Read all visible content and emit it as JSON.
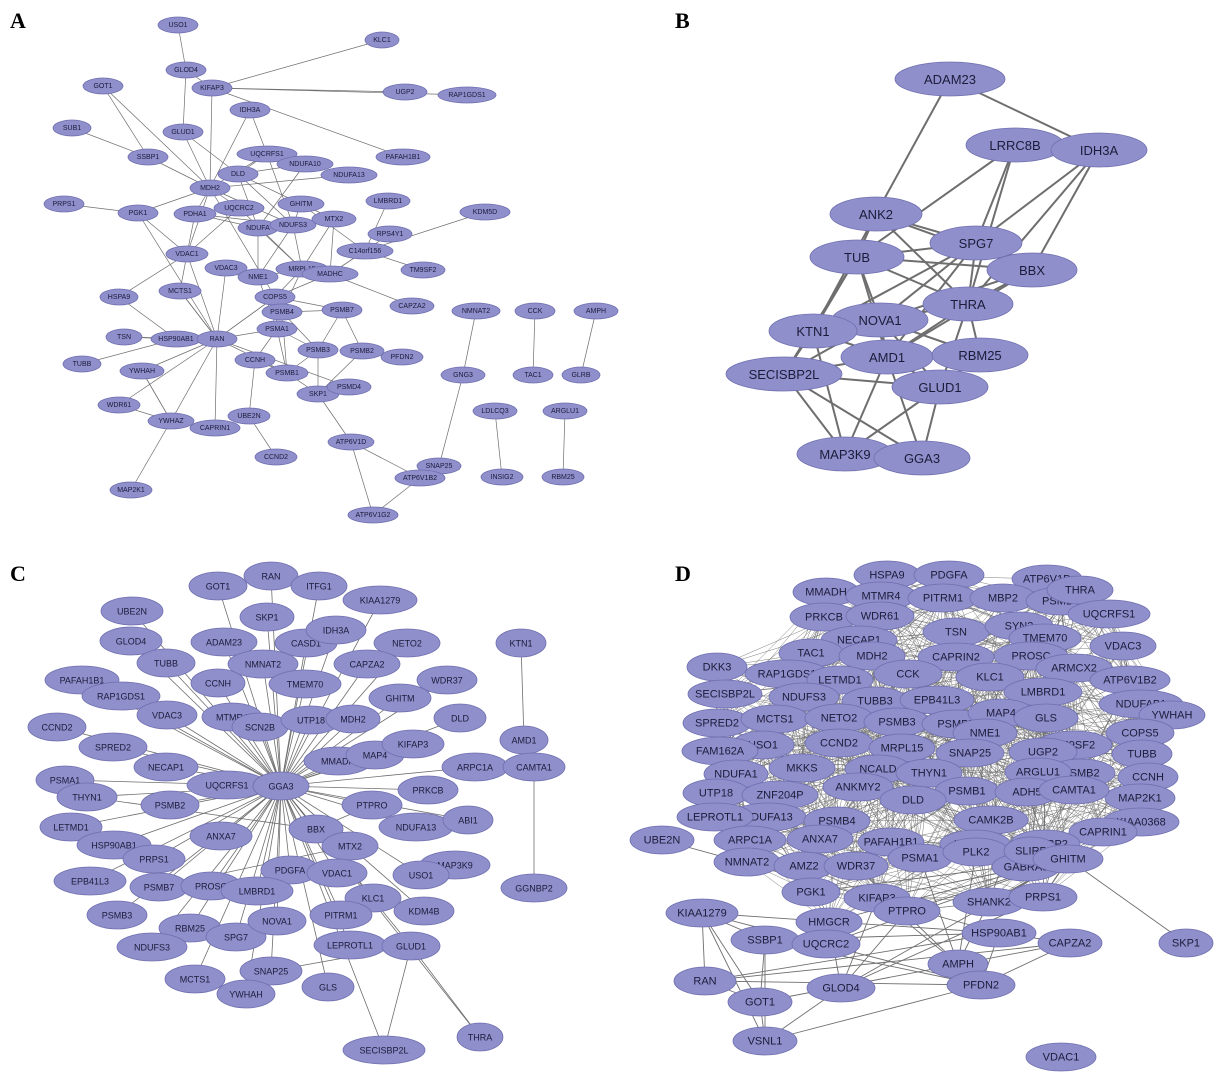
{
  "panels": [
    {
      "letter": "A",
      "nodes": [
        "USO1",
        "KLC1",
        "UGP2",
        "GLOD4",
        "GOT1",
        "KIFAP3",
        "RAP1GDS1",
        "IDH3A",
        "SUB1",
        "GLUD1",
        "PAFAH1B1",
        "SSBP1",
        "UQCRFS1",
        "NDUFA10",
        "DLD",
        "NDUFA13",
        "MDH2",
        "GHITM",
        "LMBRD1",
        "KDM5D",
        "PRPS1",
        "PGK1",
        "PDHA1",
        "UQCRC2",
        "NDUFA",
        "NDUFS3",
        "MTX2",
        "C14orf156",
        "RPS4Y1",
        "VDAC1",
        "VDAC3",
        "NME1",
        "MRPL15",
        "MADHC",
        "TM9SF2",
        "MCTS1",
        "COPS5",
        "CAPZA2",
        "HSPA9",
        "PSMB4",
        "PSMB7",
        "NMNAT2",
        "CCK",
        "AMPH",
        "TSN",
        "HSP90AB1",
        "RAN",
        "PSMA1",
        "TUBB",
        "CCNH",
        "PSMB3",
        "PSMB2",
        "PFDN2",
        "GNG3",
        "TAC1",
        "GLRB",
        "YWHAH",
        "PSMB1",
        "SKP1",
        "PSMD4",
        "WDR61",
        "YWHAZ",
        "UBE2N",
        "LDLCQ3",
        "ARGLU1",
        "CAPRIN1",
        "CCND2",
        "ATP6V1D",
        "SNAP25",
        "INSIG2",
        "RBM25",
        "ATP6V1B2",
        "MAP2K1",
        "ATP6V1G2"
      ]
    },
    {
      "letter": "B",
      "nodes": [
        "ADAM23",
        "LRRC8B",
        "IDH3A",
        "ANK2",
        "SPG7",
        "TUB",
        "BBX",
        "THRA",
        "NOVA1",
        "KTN1",
        "AMD1",
        "RBM25",
        "SECISBP2L",
        "GLUD1",
        "MAP3K9",
        "GGA3"
      ]
    },
    {
      "letter": "C",
      "nodes": [
        "RAN",
        "GOT1",
        "ITFG1",
        "UBE2N",
        "SKP1",
        "KIAA1279",
        "GLOD4",
        "ADAM23",
        "CASD1",
        "IDH3A",
        "NETO2",
        "KTN1",
        "TUBB",
        "NMNAT2",
        "CAPZA2",
        "PAFAH1B1",
        "CCNH",
        "TMEM70",
        "WDR37",
        "RAP1GDS1",
        "VDAC3",
        "MTMR4",
        "SCN2B",
        "UTP18",
        "MDH2",
        "GHITM",
        "CCND2",
        "DLD",
        "SPRED2",
        "NECAP1",
        "MMADH",
        "MAP4",
        "KIFAP3",
        "AMD1",
        "PSMA1",
        "UQCRFS1",
        "GGA3",
        "ARPC1A",
        "THYN1",
        "PSMB2",
        "PTPRO",
        "PRKCB",
        "CAMTA1",
        "LETMD1",
        "BBX",
        "NDUFA13",
        "ABI1",
        "HSP90AB1",
        "ANXA7",
        "MTX2",
        "PRPS1",
        "MAP3K9",
        "EPB41L3",
        "PDGFA",
        "VDAC1",
        "USO1",
        "PSMB7",
        "PROSC",
        "LMBRD1",
        "KLC1",
        "GGNBP2",
        "PSMB3",
        "RBM25",
        "KDM4B",
        "SPG7",
        "NOVA1",
        "PITRM1",
        "NDUFS3",
        "LEPROTL1",
        "GLUD1",
        "MCTS1",
        "SNAP25",
        "YWHAH",
        "GLS",
        "SECISBP2L",
        "THRA"
      ]
    },
    {
      "letter": "D",
      "nodes": [
        "HSPA9",
        "PDGFA",
        "ATP6V1D",
        "MMADH",
        "MTMR4",
        "PITRM1",
        "MBP2",
        "PSMD4",
        "THRA",
        "PRKCB",
        "WDR61",
        "UQCRFS1",
        "NECAP1",
        "TSN",
        "SYN2",
        "TMEM70",
        "TAC1",
        "MDH2",
        "CAPRIN2",
        "PROSC",
        "VDAC3",
        "DKK3",
        "ARMCX2",
        "RAP1GDS1",
        "LETMD1",
        "CCK",
        "KLC1",
        "ATP6V1B2",
        "SECISBP2L",
        "NDUFS3",
        "TUBB3",
        "EPB41L3",
        "LMBRD1",
        "NDUFAB1",
        "SPRED2",
        "MCTS1",
        "NETO2",
        "PSMB3",
        "PSMB7",
        "MAP4",
        "GLS",
        "YWHAH",
        "USO1",
        "CCND2",
        "MRPL15",
        "NME1",
        "TM9SF2",
        "COPS5",
        "FAM162A",
        "NCALD",
        "SNAP25",
        "UGP2",
        "PSMB2",
        "TUBB",
        "MKKS",
        "NDUFA1",
        "THYN1",
        "ARGLU1",
        "CCNH",
        "UTP18",
        "ZNF204P",
        "ANKMY2",
        "PSMB1",
        "ADH5",
        "MAP2K1",
        "NDUFA13",
        "DLD",
        "CAMTA1",
        "LEPROTL1",
        "PSMB4",
        "CAMK2B",
        "KIAA0368",
        "CAPRIN1",
        "ARPC1A",
        "ANXA7",
        "PAFAH1B1",
        "LRRC49",
        "GGNBP2",
        "UBE2N",
        "NMNAT2",
        "AMZ2",
        "WDR37",
        "PSMA1",
        "PLK2",
        "GABRA5",
        "SLIRP",
        "GHITM",
        "PGK1",
        "KIFAP3",
        "SHANK2",
        "PRPS1",
        "HMGCR",
        "PTPRO",
        "HSP90AB1",
        "KIAA1279",
        "SSBP1",
        "UQCRC2",
        "CAPZA2",
        "SKP1",
        "AMPH",
        "RAN",
        "GLOD4",
        "PFDN2",
        "GOT1",
        "VSNL1",
        "VDAC1"
      ]
    }
  ],
  "colors": {
    "node_fill": "#8f8fcc",
    "node_stroke": "#6f6fb0",
    "edge": "#6e6e6e",
    "label": "#1c1c3a"
  }
}
